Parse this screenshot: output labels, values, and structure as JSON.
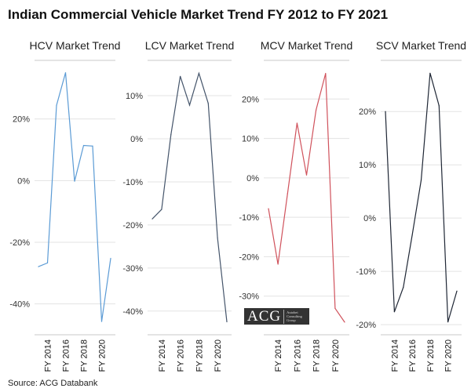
{
  "title": "Indian Commercial Vehicle Market Trend FY 2012 to FY 2021",
  "source": "Source: ACG Databank",
  "logo": {
    "text": "ACG",
    "subtext": "Autobei Consulting Group"
  },
  "chart_data": [
    {
      "type": "line",
      "title": "HCV Market Trend",
      "color": "#5b9bd5",
      "x": [
        "FY 2013",
        "FY 2014",
        "FY 2015",
        "FY 2016",
        "FY 2017",
        "FY 2018",
        "FY 2019",
        "FY 2020",
        "FY 2021"
      ],
      "x_tick_labels": [
        "FY 2014",
        "FY 2016",
        "FY 2018",
        "FY 2020"
      ],
      "values": [
        -27.9,
        -26.7,
        24.4,
        35.0,
        -0.2,
        11.4,
        11.2,
        -45.7,
        -25.2
      ],
      "ylim": [
        -50,
        39
      ],
      "yticks": [
        20,
        0,
        -20,
        -40
      ],
      "ytick_labels": [
        "20%",
        "0%",
        "-20%",
        "-40%"
      ],
      "grid": true
    },
    {
      "type": "line",
      "title": "LCV Market Trend",
      "color": "#44546a",
      "x": [
        "FY 2013",
        "FY 2014",
        "FY 2015",
        "FY 2016",
        "FY 2017",
        "FY 2018",
        "FY 2019",
        "FY 2020",
        "FY 2021"
      ],
      "x_tick_labels": [
        "FY 2014",
        "FY 2016",
        "FY 2018",
        "FY 2020"
      ],
      "values": [
        -18.6,
        -16.4,
        1.0,
        14.5,
        7.8,
        15.2,
        8.2,
        -23.0,
        -42.5
      ],
      "ylim": [
        -45.5,
        18.2
      ],
      "yticks": [
        10,
        0,
        -10,
        -20,
        -30,
        -40
      ],
      "ytick_labels": [
        "10%",
        "0%",
        "-10%",
        "-20%",
        "-30%",
        "-40%"
      ],
      "grid": true
    },
    {
      "type": "line",
      "title": "MCV Market Trend",
      "color": "#d0525c",
      "x": [
        "FY 2013",
        "FY 2014",
        "FY 2015",
        "FY 2016",
        "FY 2017",
        "FY 2018",
        "FY 2019",
        "FY 2020",
        "FY 2021"
      ],
      "x_tick_labels": [
        "FY 2014",
        "FY 2016",
        "FY 2018",
        "FY 2020"
      ],
      "values": [
        -7.8,
        -21.9,
        -4.0,
        13.9,
        0.7,
        17.2,
        26.5,
        -33.1,
        -36.6
      ],
      "ylim": [
        -39.8,
        29.8
      ],
      "yticks": [
        20,
        10,
        0,
        -10,
        -20,
        -30
      ],
      "ytick_labels": [
        "20%",
        "10%",
        "0%",
        "-10%",
        "-20%",
        "-30%"
      ],
      "grid": true
    },
    {
      "type": "line",
      "title": "SCV Market Trend",
      "color": "#1f2735",
      "x": [
        "FY 2013",
        "FY 2014",
        "FY 2015",
        "FY 2016",
        "FY 2017",
        "FY 2018",
        "FY 2019",
        "FY 2020",
        "FY 2021"
      ],
      "x_tick_labels": [
        "FY 2014",
        "FY 2016",
        "FY 2018",
        "FY 2020"
      ],
      "values": [
        20.0,
        -17.6,
        -13.0,
        -3.2,
        7.1,
        27.2,
        21.1,
        -19.5,
        -13.7
      ],
      "ylim": [
        -21.9,
        29.6
      ],
      "yticks": [
        20,
        10,
        0,
        -10,
        -20
      ],
      "ytick_labels": [
        "20%",
        "10%",
        "0%",
        "-10%",
        "-20%"
      ],
      "grid": true
    }
  ]
}
